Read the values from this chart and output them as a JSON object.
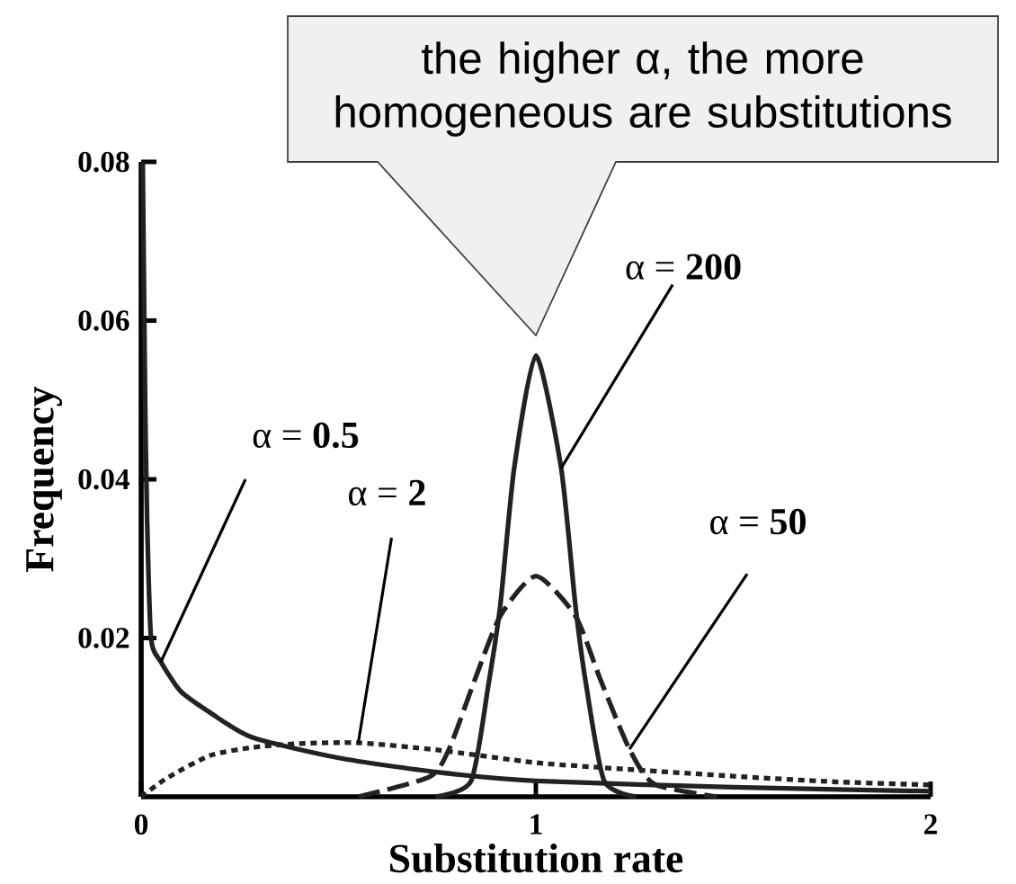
{
  "chart_data": {
    "type": "line",
    "xlabel": "Substitution rate",
    "ylabel": "Frequency",
    "xlim": [
      0,
      2
    ],
    "ylim": [
      0,
      0.08
    ],
    "xticks": [
      0,
      1,
      2
    ],
    "yticks": [
      0.02,
      0.04,
      0.06,
      0.08
    ],
    "marker": "none",
    "series": [
      {
        "name": "α = **0.5**",
        "color": "#222222",
        "line_style": "solid",
        "x": [
          0.004,
          0.01,
          0.015,
          0.025,
          0.05,
          0.1,
          0.175,
          0.28,
          0.5,
          0.75,
          1,
          1.5,
          2
        ],
        "values": [
          0.08,
          0.05,
          0.035,
          0.02,
          0.017,
          0.0133,
          0.0106,
          0.0075,
          0.0049,
          0.0031,
          0.002,
          0.0012,
          0.0007
        ]
      },
      {
        "name": "α = **2**",
        "color": "#222222",
        "line_style": "dotted",
        "x": [
          0,
          0.07,
          0.175,
          0.28,
          0.4,
          0.55,
          0.75,
          1,
          1.25,
          1.5,
          1.75,
          2
        ],
        "values": [
          0,
          0.0025,
          0.0052,
          0.0062,
          0.0067,
          0.0068,
          0.0059,
          0.0043,
          0.0034,
          0.0026,
          0.0019,
          0.0015
        ]
      },
      {
        "name": "α = **50**",
        "color": "#222222",
        "line_style": "dashed",
        "x": [
          0.55,
          0.73,
          0.78,
          0.845,
          0.91,
          1,
          1.1,
          1.164,
          1.237,
          1.3,
          1.46
        ],
        "values": [
          0,
          0.0025,
          0.006,
          0.0147,
          0.0228,
          0.0278,
          0.0228,
          0.0147,
          0.006,
          0.0016,
          0
        ]
      },
      {
        "name": "α = **200**",
        "color": "#222222",
        "line_style": "solid",
        "x": [
          0.745,
          0.836,
          0.88,
          0.91,
          0.945,
          1,
          1.064,
          1.1,
          1.127,
          1.173,
          1.255
        ],
        "values": [
          0,
          0.002,
          0.0142,
          0.0242,
          0.0414,
          0.0556,
          0.0414,
          0.0242,
          0.0142,
          0.002,
          0
        ]
      }
    ],
    "annotations": [
      "the higher α, the more homogeneous are substitutions"
    ]
  }
}
